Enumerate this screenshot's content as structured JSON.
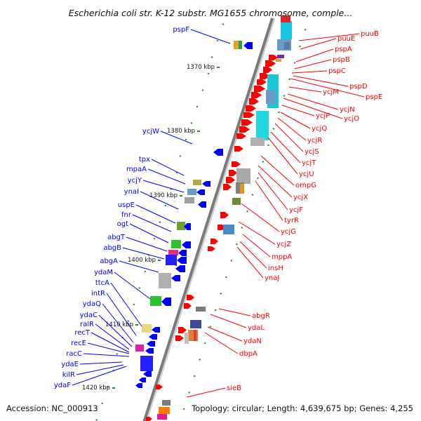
{
  "title": "Escherichia coli str. K-12 substr. MG1655 chromosome, comple...",
  "footer": {
    "accession": "Accession: NC_000913",
    "topology": "Topology: circular; Length: 4,639,675 bp; Genes: 4,255"
  },
  "colors": {
    "forward": "#ff0000",
    "reverse": "#0000ff",
    "backbone": "#9a9a9a"
  },
  "kbp_marks": [
    "1370 kbp",
    "1380 kbp",
    "1390 kbp",
    "1400 kbp",
    "1410 kbp",
    "1420 kbp"
  ],
  "left_labels": [
    "pspF",
    "ycjW",
    "tpx",
    "mpaA",
    "ycjY",
    "ynaI",
    "uspE",
    "fnr",
    "ogt",
    "abgT",
    "abgB",
    "abgA",
    "ydaM",
    "ttcA",
    "intR",
    "ydaQ",
    "ydaC",
    "ralR",
    "recT",
    "recE",
    "racC",
    "ydaE",
    "kilR",
    "ydaF"
  ],
  "right_labels": [
    "puuB",
    "puuE",
    "pspA",
    "pspB",
    "pspC",
    "pspD",
    "pspE",
    "ycjM",
    "ycjN",
    "ycjO",
    "ycjP",
    "ycjQ",
    "ycjR",
    "ycjS",
    "ycjT",
    "ycjU",
    "ompG",
    "ycjX",
    "ycjF",
    "tyrR",
    "ycjG",
    "ycjZ",
    "mppA",
    "insH",
    "ynaJ",
    "abgR",
    "ydaL",
    "ydaN",
    "dbpA",
    "sieB"
  ]
}
